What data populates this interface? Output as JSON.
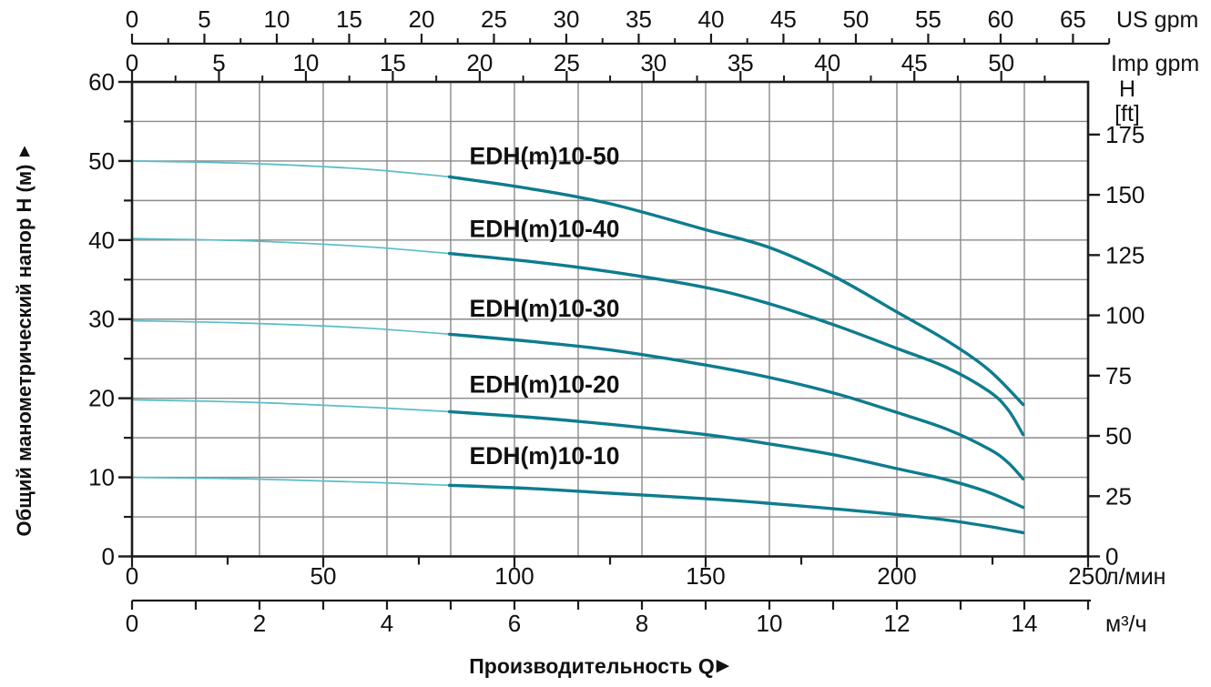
{
  "chart_data": {
    "type": "line",
    "x_axis_title": {
      "text": "Производительность Q",
      "arrow": "►"
    },
    "y_axis_title": {
      "text": "Общий манометрический напор H (м)",
      "arrow": "▲"
    },
    "units": {
      "top_primary": "US gpm",
      "top_secondary": "Imp gpm",
      "right_line1": "H",
      "right_line2": "[ft]",
      "bottom_primary": "л/мин",
      "bottom_secondary": "м³/ч"
    },
    "axes": {
      "us_gpm": {
        "ticks": [
          0,
          5,
          10,
          15,
          20,
          25,
          30,
          35,
          40,
          45,
          50,
          55,
          60,
          65
        ],
        "minor_step": 2.5,
        "minor_max": 67.5
      },
      "imp_gpm": {
        "ticks": [
          0,
          5,
          10,
          15,
          20,
          25,
          30,
          35,
          40,
          45,
          50
        ],
        "minor_step": 2.5,
        "minor_max": 52.5
      },
      "l_min": {
        "ticks": [
          0,
          50,
          100,
          150,
          200,
          250
        ],
        "minor_step": 25,
        "max": 250
      },
      "m3_h": {
        "labeled_ticks": [
          0,
          2,
          4,
          6,
          8,
          10,
          12,
          14
        ],
        "tick_step": 1,
        "tick_max": 15
      },
      "h_m": {
        "ticks": [
          0,
          10,
          20,
          30,
          40,
          50,
          60
        ],
        "minor_step": 5,
        "range": [
          0,
          60
        ],
        "grid_step": 5
      },
      "h_ft": {
        "ticks": [
          0,
          25,
          50,
          75,
          100,
          125,
          150,
          175
        ]
      }
    },
    "series": [
      {
        "name": "EDH(m)10-50",
        "points": [
          [
            0,
            50
          ],
          [
            30,
            49.7
          ],
          [
            60,
            49.0
          ],
          [
            83,
            48.0
          ],
          [
            104,
            46.5
          ],
          [
            125,
            44.6
          ],
          [
            150,
            41.3
          ],
          [
            167,
            39.0
          ],
          [
            184,
            35.3
          ],
          [
            200,
            30.9
          ],
          [
            213,
            27.3
          ],
          [
            224,
            23.6
          ],
          [
            233,
            19.2
          ]
        ]
      },
      {
        "name": "EDH(m)10-40",
        "points": [
          [
            0,
            40.2
          ],
          [
            30,
            39.9
          ],
          [
            60,
            39.2
          ],
          [
            83,
            38.3
          ],
          [
            104,
            37.3
          ],
          [
            125,
            36.0
          ],
          [
            150,
            34.0
          ],
          [
            167,
            31.9
          ],
          [
            184,
            29.2
          ],
          [
            200,
            26.3
          ],
          [
            213,
            23.9
          ],
          [
            224,
            20.9
          ],
          [
            229,
            18.6
          ],
          [
            233,
            15.4
          ]
        ]
      },
      {
        "name": "EDH(m)10-30",
        "points": [
          [
            0,
            29.8
          ],
          [
            30,
            29.5
          ],
          [
            60,
            28.9
          ],
          [
            83,
            28.1
          ],
          [
            104,
            27.2
          ],
          [
            125,
            26.1
          ],
          [
            150,
            24.2
          ],
          [
            167,
            22.6
          ],
          [
            184,
            20.6
          ],
          [
            200,
            18.2
          ],
          [
            213,
            16.1
          ],
          [
            224,
            13.6
          ],
          [
            229,
            11.9
          ],
          [
            233,
            9.8
          ]
        ]
      },
      {
        "name": "EDH(m)10-20",
        "points": [
          [
            0,
            19.8
          ],
          [
            30,
            19.5
          ],
          [
            60,
            18.9
          ],
          [
            83,
            18.3
          ],
          [
            104,
            17.6
          ],
          [
            125,
            16.7
          ],
          [
            150,
            15.4
          ],
          [
            167,
            14.2
          ],
          [
            184,
            12.8
          ],
          [
            200,
            11.1
          ],
          [
            213,
            9.7
          ],
          [
            224,
            8.1
          ],
          [
            233,
            6.2
          ]
        ]
      },
      {
        "name": "EDH(m)10-10",
        "points": [
          [
            0,
            10.0
          ],
          [
            30,
            9.8
          ],
          [
            60,
            9.4
          ],
          [
            83,
            9.0
          ],
          [
            104,
            8.6
          ],
          [
            125,
            8.0
          ],
          [
            150,
            7.3
          ],
          [
            167,
            6.7
          ],
          [
            184,
            6.0
          ],
          [
            200,
            5.3
          ],
          [
            213,
            4.6
          ],
          [
            224,
            3.8
          ],
          [
            233,
            3.0
          ]
        ]
      }
    ],
    "style": {
      "curve_color": "#0e7c8f",
      "curve_color_light": "#5abdc7",
      "grid_color": "#8a8a8a",
      "axis_color": "#1b1b1b",
      "label_color": "#111111",
      "thick_from_q_lmin": 83
    },
    "conversions": {
      "us_gpm_to_lmin": 3.7854,
      "imp_gpm_to_lmin": 4.5461,
      "m3h_to_lmin": 16.6667,
      "ft_to_m": 0.3048
    }
  }
}
